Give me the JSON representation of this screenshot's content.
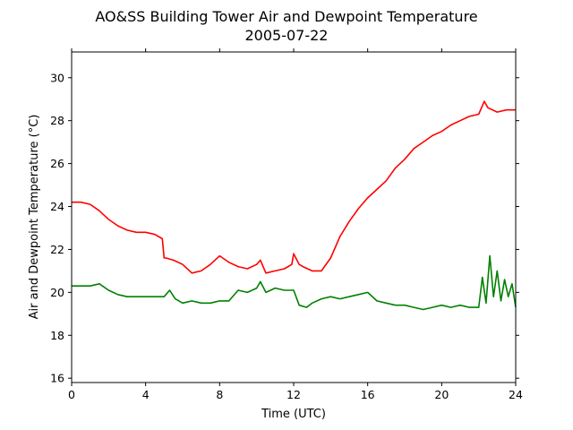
{
  "chart_data": {
    "type": "line",
    "title": "AO&SS Building Tower Air and Dewpoint Temperature",
    "subtitle": "2005-07-22",
    "xlabel": "Time (UTC)",
    "ylabel": "Air and Dewpoint Temperature (°C)",
    "xlim": [
      0,
      24
    ],
    "ylim": [
      15.8,
      31.2
    ],
    "xticks": [
      0,
      4,
      8,
      12,
      16,
      20,
      24
    ],
    "yticks": [
      16,
      18,
      20,
      22,
      24,
      26,
      28,
      30
    ],
    "grid": false,
    "legend": "none",
    "series": [
      {
        "color": "#ff0000",
        "x": [
          0,
          0.5,
          1.0,
          1.5,
          2.0,
          2.5,
          3.0,
          3.5,
          4.0,
          4.5,
          4.9,
          5.0,
          5.1,
          5.5,
          6.0,
          6.5,
          7.0,
          7.5,
          8.0,
          8.5,
          9.0,
          9.5,
          10.0,
          10.2,
          10.5,
          11.0,
          11.5,
          11.9,
          12.0,
          12.3,
          12.5,
          13.0,
          13.5,
          14.0,
          14.5,
          15.0,
          15.5,
          16.0,
          16.5,
          17.0,
          17.5,
          18.0,
          18.5,
          19.0,
          19.5,
          20.0,
          20.5,
          21.0,
          21.5,
          22.0,
          22.3,
          22.5,
          23.0,
          23.5,
          24.0
        ],
        "y": [
          24.2,
          24.2,
          24.1,
          23.8,
          23.4,
          23.1,
          22.9,
          22.8,
          22.8,
          22.7,
          22.5,
          21.6,
          21.6,
          21.5,
          21.3,
          20.9,
          21.0,
          21.3,
          21.7,
          21.4,
          21.2,
          21.1,
          21.3,
          21.5,
          20.9,
          21.0,
          21.1,
          21.3,
          21.8,
          21.3,
          21.2,
          21.0,
          21.0,
          21.6,
          22.6,
          23.3,
          23.9,
          24.4,
          24.8,
          25.2,
          25.8,
          26.2,
          26.7,
          27.0,
          27.3,
          27.5,
          27.8,
          28.0,
          28.2,
          28.3,
          28.9,
          28.6,
          28.4,
          28.5,
          28.5
        ]
      },
      {
        "color": "#008000",
        "x": [
          0,
          0.5,
          1.0,
          1.5,
          2.0,
          2.5,
          3.0,
          3.5,
          4.0,
          4.5,
          5.0,
          5.3,
          5.6,
          6.0,
          6.5,
          7.0,
          7.5,
          8.0,
          8.5,
          9.0,
          9.5,
          10.0,
          10.2,
          10.5,
          11.0,
          11.5,
          12.0,
          12.3,
          12.7,
          13.0,
          13.5,
          14.0,
          14.5,
          15.0,
          15.5,
          16.0,
          16.5,
          17.0,
          17.5,
          18.0,
          18.5,
          19.0,
          19.5,
          20.0,
          20.5,
          21.0,
          21.5,
          22.0,
          22.2,
          22.4,
          22.6,
          22.8,
          23.0,
          23.2,
          23.4,
          23.6,
          23.8,
          24.0
        ],
        "y": [
          20.3,
          20.3,
          20.3,
          20.4,
          20.1,
          19.9,
          19.8,
          19.8,
          19.8,
          19.8,
          19.8,
          20.1,
          19.7,
          19.5,
          19.6,
          19.5,
          19.5,
          19.6,
          19.6,
          20.1,
          20.0,
          20.2,
          20.5,
          20.0,
          20.2,
          20.1,
          20.1,
          19.4,
          19.3,
          19.5,
          19.7,
          19.8,
          19.7,
          19.8,
          19.9,
          20.0,
          19.6,
          19.5,
          19.4,
          19.4,
          19.3,
          19.2,
          19.3,
          19.4,
          19.3,
          19.4,
          19.3,
          19.3,
          20.7,
          19.5,
          21.7,
          19.8,
          21.0,
          19.6,
          20.6,
          19.8,
          20.4,
          19.3
        ]
      }
    ]
  }
}
